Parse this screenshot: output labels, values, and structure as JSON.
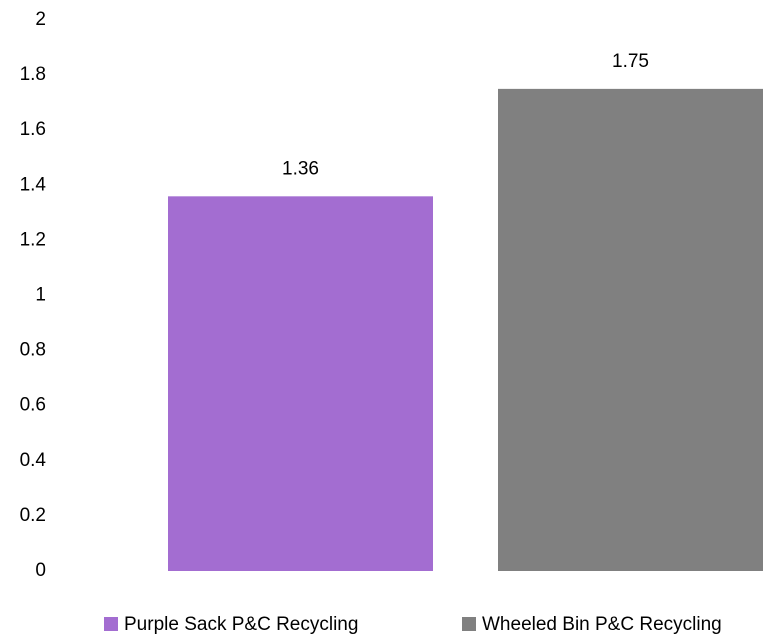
{
  "chart_data": {
    "type": "bar",
    "categories": [
      null
    ],
    "series": [
      {
        "name": "Purple Sack P&C Recycling",
        "color": "#a36dd1",
        "values": [
          1.36
        ]
      },
      {
        "name": "Wheeled Bin P&C Recycling",
        "color": "#808080",
        "values": [
          1.75
        ]
      }
    ],
    "ylim": [
      0,
      2
    ],
    "yticks": [
      0,
      0.2,
      0.4,
      0.6,
      0.8,
      1,
      1.2,
      1.4,
      1.6,
      1.8,
      2
    ],
    "grid": false,
    "legend": "bottom"
  }
}
